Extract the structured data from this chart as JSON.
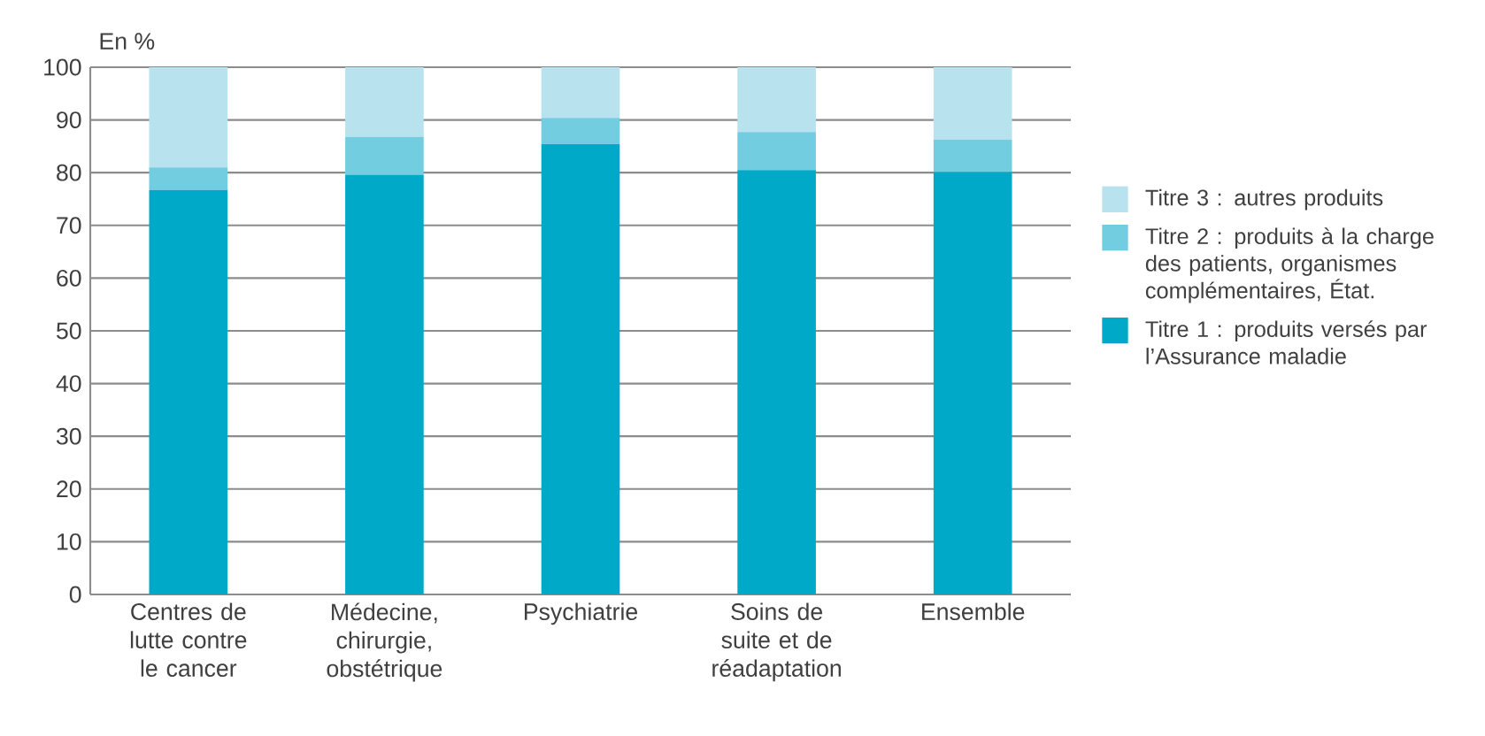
{
  "chart_data": {
    "type": "bar",
    "stacked": true,
    "ylabel": "En %",
    "categories": [
      "Centres de lutte contre le cancer",
      "Médecine, chirurgie, obstétrique",
      "Psychiatrie",
      "Soins de suite et de réadaptation",
      "Ensemble"
    ],
    "series": [
      {
        "name": "Titre 1 : produits versés par l’Assurance maladie",
        "color": "#00a9c7",
        "values": [
          76.7,
          79.6,
          85.4,
          80.5,
          80.1
        ]
      },
      {
        "name": "Titre 2 : produits à la charge des patients, organismes complémentaires, État.",
        "color": "#72cde0",
        "values": [
          4.3,
          7.2,
          5.0,
          7.2,
          6.2
        ]
      },
      {
        "name": "Titre 3 : autres produits",
        "color": "#b7e2ee",
        "values": [
          19.0,
          13.2,
          9.6,
          12.3,
          13.7
        ]
      }
    ],
    "ylim": [
      0,
      100
    ],
    "yticks": [
      0,
      10,
      20,
      30,
      40,
      50,
      60,
      70,
      80,
      90,
      100
    ],
    "grid": "y",
    "legend": "right"
  }
}
